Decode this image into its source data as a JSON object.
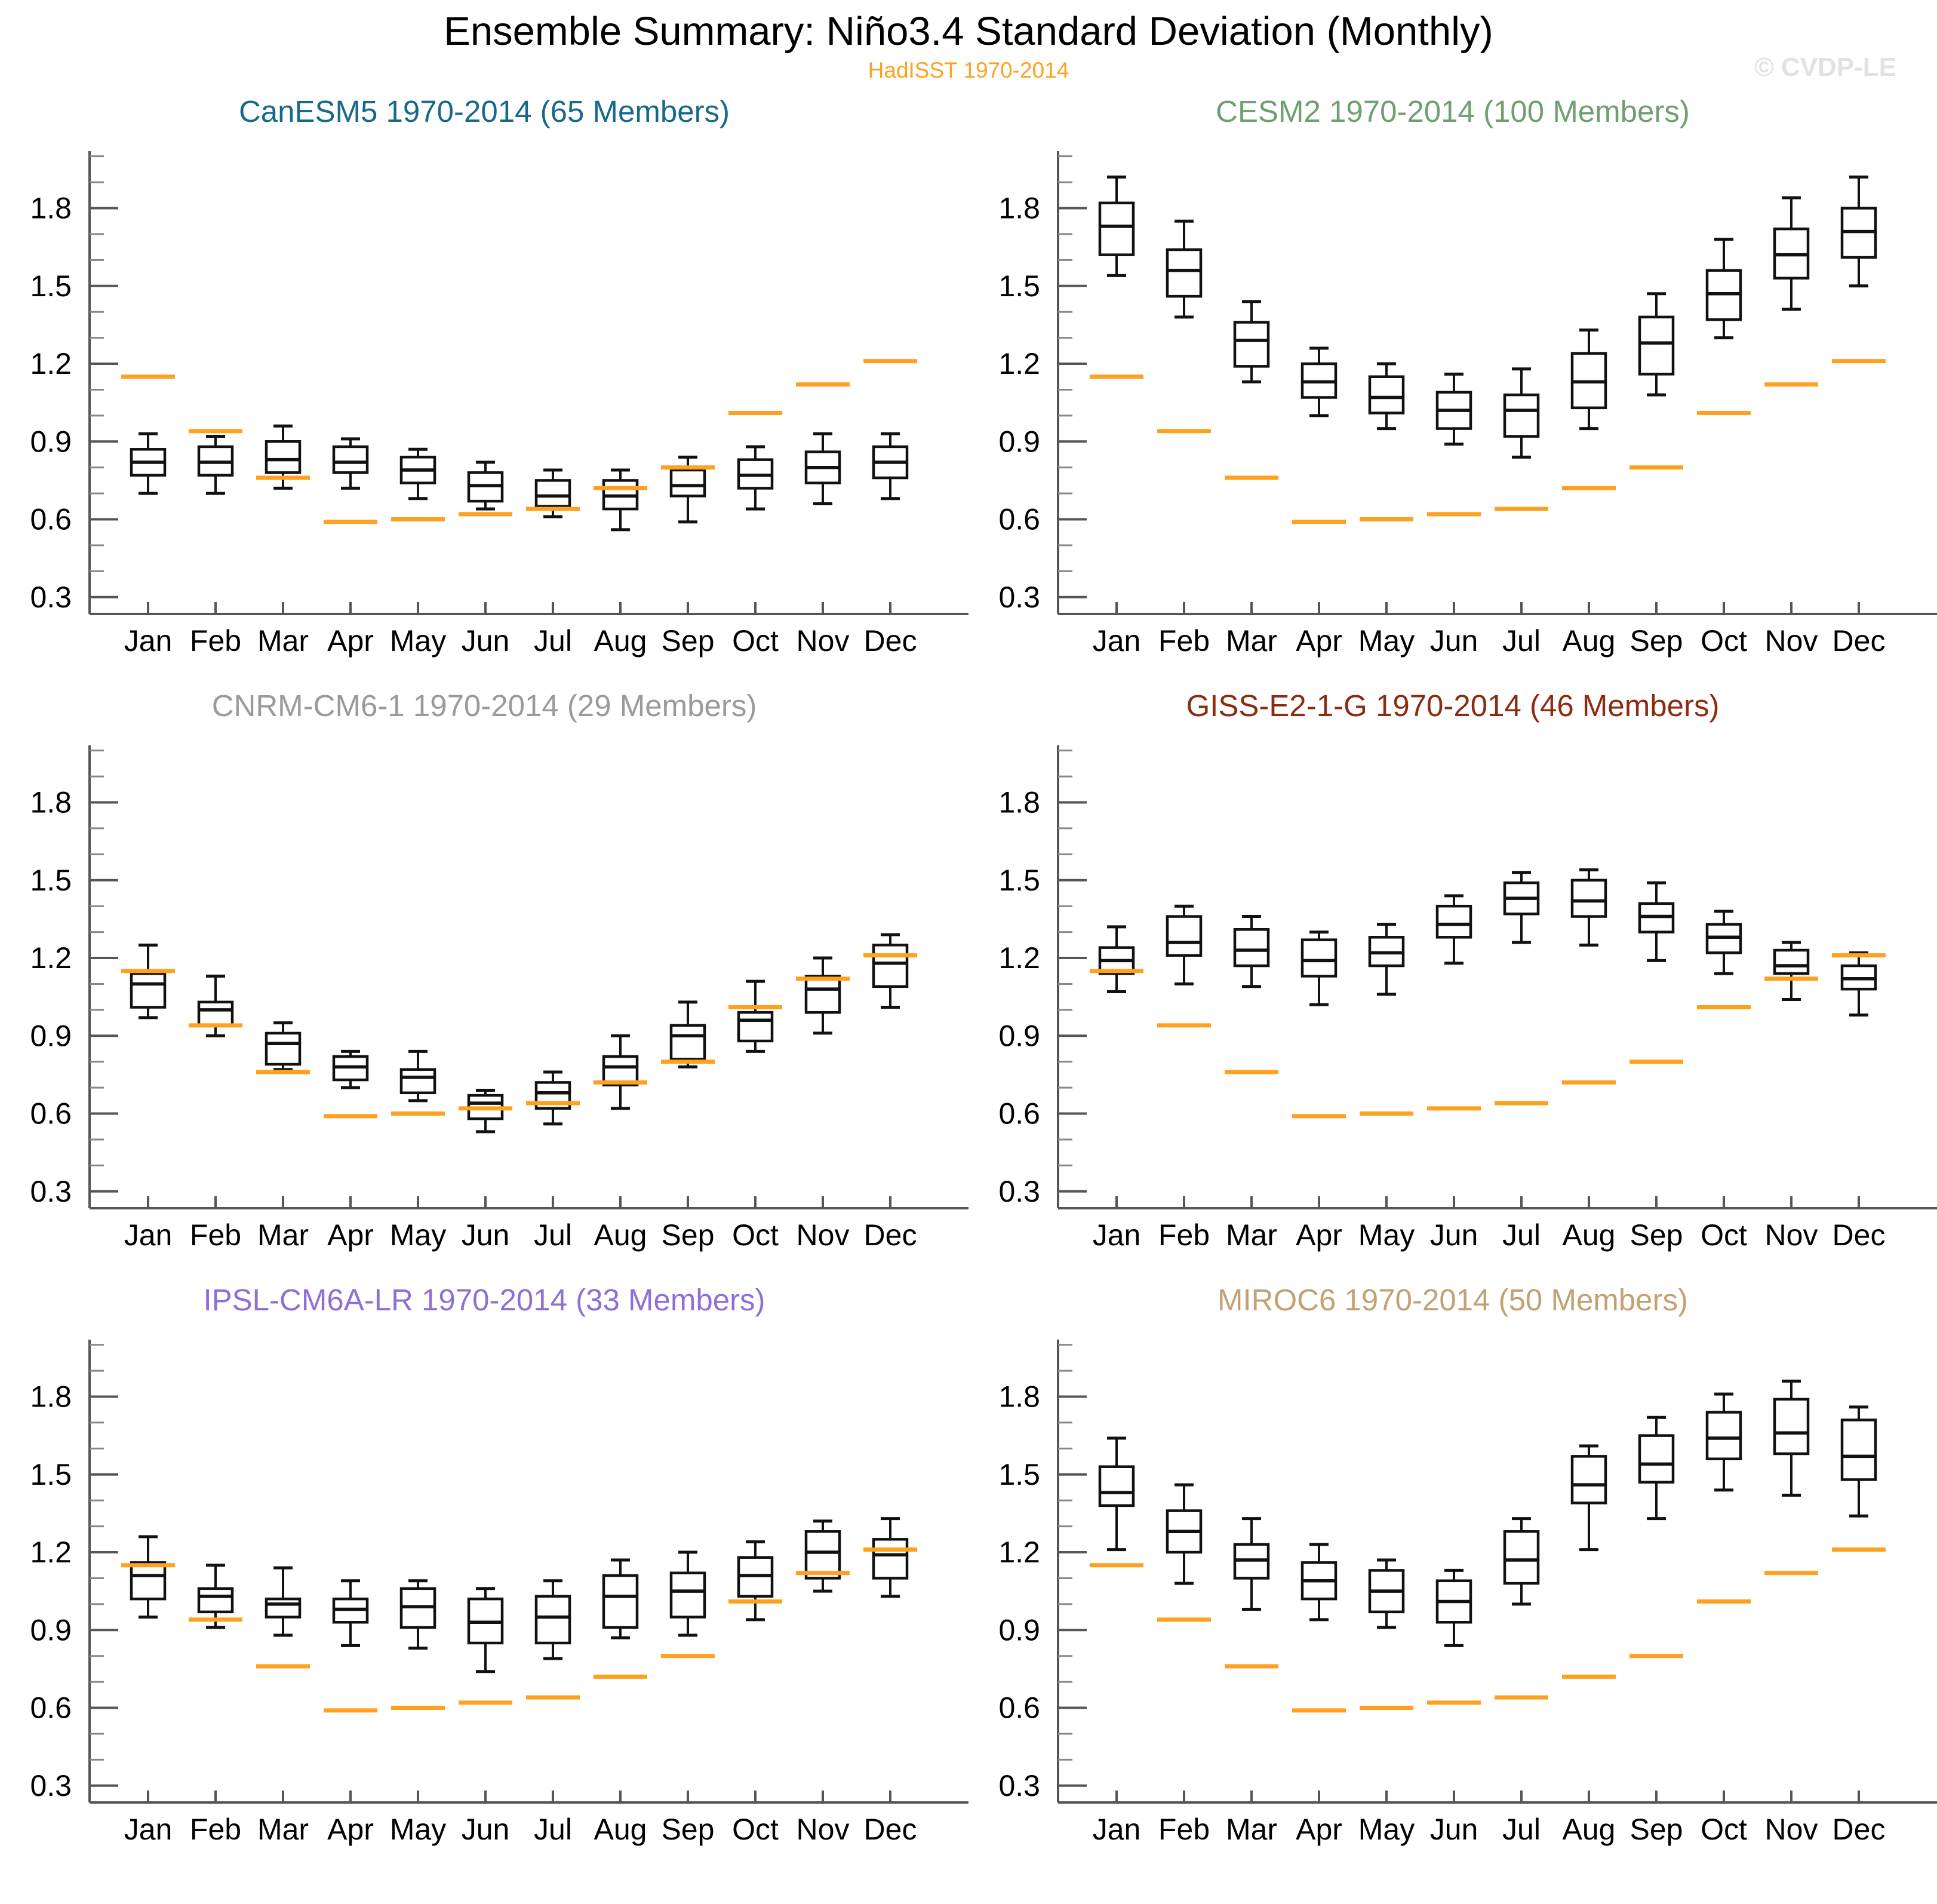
{
  "header": {
    "title": "Ensemble Summary: Niño3.4 Standard Deviation (Monthly)",
    "subtitle": "HadISST 1970-2014",
    "subtitle_color": "#FFA11E",
    "watermark": "© CVDP-LE"
  },
  "chart_data": {
    "type": "box",
    "title": "Ensemble Summary: Niño3.4 Standard Deviation (Monthly)",
    "categories": [
      "Jan",
      "Feb",
      "Mar",
      "Apr",
      "May",
      "Jun",
      "Jul",
      "Aug",
      "Sep",
      "Oct",
      "Nov",
      "Dec"
    ],
    "ylim": [
      0.235,
      2.02
    ],
    "yticks_labeled": [
      "0.3",
      "0.6",
      "0.9",
      "1.2",
      "1.5",
      "1.8"
    ],
    "ytick_values": [
      0.3,
      0.6,
      0.9,
      1.2,
      1.5,
      1.8
    ],
    "y_minor_step": 0.1,
    "grid": false,
    "box_color": "#111111",
    "observation": {
      "name": "HadISST 1970-2014",
      "color": "#FFA11E",
      "values": [
        1.15,
        0.94,
        0.76,
        0.59,
        0.6,
        0.62,
        0.64,
        0.72,
        0.8,
        1.01,
        1.12,
        1.21
      ]
    },
    "box_stats_order": [
      "whisker_low",
      "q1",
      "median",
      "q3",
      "whisker_high"
    ],
    "panels": [
      {
        "title": "CanESM5 1970-2014 (65 Members)",
        "color": "#17698A",
        "boxes": [
          [
            0.7,
            0.77,
            0.82,
            0.87,
            0.93
          ],
          [
            0.7,
            0.77,
            0.82,
            0.88,
            0.92
          ],
          [
            0.72,
            0.78,
            0.83,
            0.9,
            0.96
          ],
          [
            0.72,
            0.78,
            0.82,
            0.88,
            0.91
          ],
          [
            0.68,
            0.74,
            0.79,
            0.84,
            0.87
          ],
          [
            0.64,
            0.67,
            0.73,
            0.78,
            0.82
          ],
          [
            0.61,
            0.65,
            0.69,
            0.75,
            0.79
          ],
          [
            0.56,
            0.64,
            0.69,
            0.75,
            0.79
          ],
          [
            0.59,
            0.69,
            0.73,
            0.79,
            0.84
          ],
          [
            0.64,
            0.72,
            0.77,
            0.83,
            0.88
          ],
          [
            0.66,
            0.74,
            0.8,
            0.86,
            0.93
          ],
          [
            0.68,
            0.76,
            0.82,
            0.88,
            0.93
          ]
        ]
      },
      {
        "title": "CESM2 1970-2014 (100 Members)",
        "color": "#6F9F71",
        "boxes": [
          [
            1.54,
            1.62,
            1.73,
            1.82,
            1.92
          ],
          [
            1.38,
            1.46,
            1.56,
            1.64,
            1.75
          ],
          [
            1.13,
            1.19,
            1.29,
            1.36,
            1.44
          ],
          [
            1.0,
            1.07,
            1.13,
            1.2,
            1.26
          ],
          [
            0.95,
            1.01,
            1.07,
            1.15,
            1.2
          ],
          [
            0.89,
            0.95,
            1.02,
            1.09,
            1.16
          ],
          [
            0.84,
            0.92,
            1.02,
            1.08,
            1.18
          ],
          [
            0.95,
            1.03,
            1.13,
            1.24,
            1.33
          ],
          [
            1.08,
            1.16,
            1.28,
            1.38,
            1.47
          ],
          [
            1.3,
            1.37,
            1.47,
            1.56,
            1.68
          ],
          [
            1.41,
            1.53,
            1.62,
            1.72,
            1.84
          ],
          [
            1.5,
            1.61,
            1.71,
            1.8,
            1.92
          ]
        ]
      },
      {
        "title": "CNRM-CM6-1 1970-2014 (29 Members)",
        "color": "#9A9A9A",
        "boxes": [
          [
            0.97,
            1.01,
            1.1,
            1.14,
            1.25
          ],
          [
            0.9,
            0.94,
            1.0,
            1.03,
            1.13
          ],
          [
            0.77,
            0.79,
            0.87,
            0.91,
            0.95
          ],
          [
            0.7,
            0.73,
            0.78,
            0.82,
            0.84
          ],
          [
            0.65,
            0.68,
            0.74,
            0.77,
            0.84
          ],
          [
            0.53,
            0.58,
            0.64,
            0.67,
            0.69
          ],
          [
            0.56,
            0.62,
            0.68,
            0.72,
            0.76
          ],
          [
            0.62,
            0.71,
            0.78,
            0.82,
            0.9
          ],
          [
            0.78,
            0.81,
            0.9,
            0.94,
            1.03
          ],
          [
            0.84,
            0.88,
            0.96,
            0.99,
            1.11
          ],
          [
            0.91,
            0.99,
            1.08,
            1.13,
            1.2
          ],
          [
            1.01,
            1.09,
            1.18,
            1.25,
            1.29
          ]
        ]
      },
      {
        "title": "GISS-E2-1-G 1970-2014 (46 Members)",
        "color": "#8C2B10",
        "boxes": [
          [
            1.07,
            1.14,
            1.19,
            1.24,
            1.32
          ],
          [
            1.1,
            1.21,
            1.26,
            1.36,
            1.4
          ],
          [
            1.09,
            1.17,
            1.23,
            1.31,
            1.36
          ],
          [
            1.02,
            1.13,
            1.19,
            1.27,
            1.3
          ],
          [
            1.06,
            1.17,
            1.22,
            1.28,
            1.33
          ],
          [
            1.18,
            1.28,
            1.33,
            1.4,
            1.44
          ],
          [
            1.26,
            1.37,
            1.43,
            1.49,
            1.53
          ],
          [
            1.25,
            1.36,
            1.42,
            1.5,
            1.54
          ],
          [
            1.19,
            1.3,
            1.36,
            1.41,
            1.49
          ],
          [
            1.14,
            1.22,
            1.28,
            1.33,
            1.38
          ],
          [
            1.04,
            1.14,
            1.17,
            1.23,
            1.26
          ],
          [
            0.98,
            1.08,
            1.12,
            1.17,
            1.22
          ]
        ]
      },
      {
        "title": "IPSL-CM6A-LR 1970-2014 (33 Members)",
        "color": "#8D6FD6",
        "boxes": [
          [
            0.95,
            1.02,
            1.11,
            1.16,
            1.26
          ],
          [
            0.91,
            0.97,
            1.03,
            1.06,
            1.15
          ],
          [
            0.88,
            0.95,
            1.0,
            1.02,
            1.14
          ],
          [
            0.84,
            0.93,
            0.98,
            1.02,
            1.09
          ],
          [
            0.83,
            0.91,
            0.99,
            1.06,
            1.09
          ],
          [
            0.74,
            0.85,
            0.93,
            1.02,
            1.06
          ],
          [
            0.79,
            0.85,
            0.95,
            1.03,
            1.09
          ],
          [
            0.87,
            0.91,
            1.03,
            1.11,
            1.17
          ],
          [
            0.88,
            0.95,
            1.05,
            1.12,
            1.2
          ],
          [
            0.94,
            1.03,
            1.11,
            1.18,
            1.24
          ],
          [
            1.05,
            1.1,
            1.2,
            1.28,
            1.32
          ],
          [
            1.03,
            1.1,
            1.19,
            1.25,
            1.33
          ]
        ]
      },
      {
        "title": "MIROC6 1970-2014 (50 Members)",
        "color": "#C2A173",
        "boxes": [
          [
            1.21,
            1.38,
            1.43,
            1.53,
            1.64
          ],
          [
            1.08,
            1.2,
            1.28,
            1.36,
            1.46
          ],
          [
            0.98,
            1.1,
            1.17,
            1.23,
            1.33
          ],
          [
            0.94,
            1.02,
            1.09,
            1.16,
            1.23
          ],
          [
            0.91,
            0.97,
            1.05,
            1.13,
            1.17
          ],
          [
            0.84,
            0.93,
            1.01,
            1.09,
            1.13
          ],
          [
            1.0,
            1.08,
            1.17,
            1.28,
            1.33
          ],
          [
            1.21,
            1.39,
            1.46,
            1.57,
            1.61
          ],
          [
            1.33,
            1.47,
            1.54,
            1.65,
            1.72
          ],
          [
            1.44,
            1.56,
            1.64,
            1.74,
            1.81
          ],
          [
            1.42,
            1.58,
            1.66,
            1.79,
            1.86
          ],
          [
            1.34,
            1.48,
            1.57,
            1.71,
            1.76
          ]
        ]
      }
    ]
  }
}
